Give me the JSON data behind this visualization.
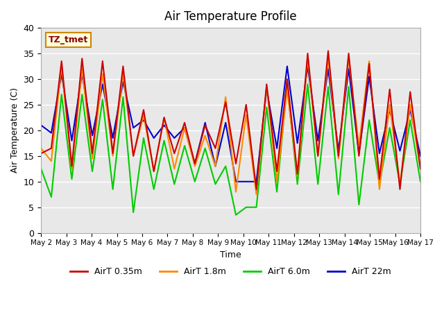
{
  "title": "Air Temperature Profile",
  "xlabel": "Time",
  "ylabel": "Air Temperature (C)",
  "annotation": "TZ_tmet",
  "ylim": [
    0,
    40
  ],
  "yticks": [
    0,
    5,
    10,
    15,
    20,
    25,
    30,
    35,
    40
  ],
  "background_color": "#e8e8e8",
  "colors": {
    "AirT 0.35m": "#cc0000",
    "AirT 1.8m": "#ff8800",
    "AirT 6.0m": "#00cc00",
    "AirT 22m": "#0000cc"
  },
  "series": {
    "AirT 0.35m": [
      15.5,
      16.5,
      33.5,
      13.0,
      34.0,
      15.5,
      33.5,
      15.5,
      32.5,
      15.0,
      24.0,
      12.0,
      22.5,
      15.5,
      21.5,
      13.5,
      21.0,
      16.5,
      25.5,
      13.5,
      25.0,
      8.5,
      29.0,
      12.0,
      30.0,
      11.5,
      35.0,
      15.0,
      35.5,
      15.0,
      35.0,
      15.0,
      33.0,
      10.5,
      28.0,
      8.5,
      27.5,
      12.5
    ],
    "AirT 1.8m": [
      16.5,
      14.0,
      32.5,
      12.5,
      32.0,
      14.5,
      31.0,
      15.0,
      31.0,
      15.0,
      23.0,
      12.0,
      22.5,
      12.5,
      20.5,
      13.0,
      19.0,
      13.0,
      26.5,
      8.0,
      23.0,
      7.5,
      28.5,
      10.0,
      28.0,
      11.0,
      34.0,
      15.0,
      34.0,
      14.5,
      34.0,
      17.0,
      33.5,
      8.5,
      25.0,
      9.5,
      25.0,
      12.5
    ],
    "AirT 6.0m": [
      12.5,
      7.0,
      27.0,
      10.5,
      27.0,
      12.0,
      26.0,
      8.5,
      26.5,
      4.0,
      18.5,
      8.5,
      18.0,
      9.5,
      17.0,
      10.0,
      16.5,
      9.5,
      13.0,
      3.5,
      5.0,
      5.0,
      24.5,
      8.0,
      29.0,
      9.5,
      29.0,
      9.5,
      28.5,
      7.5,
      28.5,
      5.5,
      22.0,
      9.5,
      20.5,
      9.5,
      22.0,
      10.0
    ],
    "AirT 22m": [
      21.0,
      19.5,
      31.0,
      18.0,
      31.0,
      19.0,
      29.0,
      18.5,
      29.5,
      20.5,
      22.0,
      18.5,
      21.0,
      18.5,
      20.5,
      13.5,
      21.5,
      13.0,
      21.5,
      10.0,
      10.0,
      10.0,
      28.0,
      16.5,
      32.5,
      17.5,
      32.5,
      18.0,
      32.0,
      16.0,
      32.0,
      15.5,
      30.5,
      15.5,
      24.0,
      16.0,
      24.0,
      15.0
    ]
  }
}
